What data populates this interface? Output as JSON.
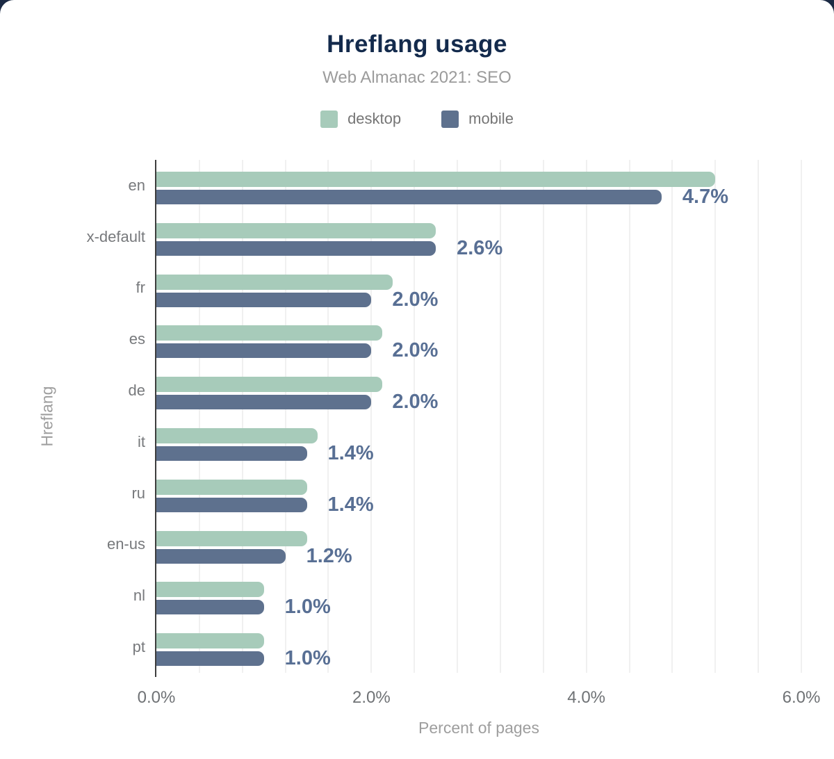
{
  "header": {
    "title": "Hreflang usage",
    "subtitle": "Web Almanac 2021: SEO"
  },
  "legend": [
    {
      "label": "desktop",
      "color": "#a7cbba"
    },
    {
      "label": "mobile",
      "color": "#5e718e"
    }
  ],
  "colors": {
    "title": "#132a4c",
    "desktop_bar": "#a7cbba",
    "mobile_bar": "#5e718e",
    "data_label": "#586f94",
    "axis_line": "#3d3d3d",
    "gridline": "#f0f0f0",
    "card_background": "#ffffff",
    "page_background": "#1b2a44"
  },
  "chart_data": {
    "type": "bar",
    "orientation": "horizontal",
    "title": "Hreflang usage",
    "subtitle": "Web Almanac 2021: SEO",
    "xlabel": "Percent of pages",
    "ylabel": "Hreflang",
    "xlim": [
      0,
      6
    ],
    "grid": true,
    "minor_gridline_step": 0.4,
    "legend_position": "top",
    "categories": [
      "en",
      "x-default",
      "fr",
      "es",
      "de",
      "it",
      "ru",
      "en-us",
      "nl",
      "pt"
    ],
    "series": [
      {
        "name": "desktop",
        "color": "#a7cbba",
        "values": [
          5.2,
          2.6,
          2.2,
          2.1,
          2.1,
          1.5,
          1.4,
          1.4,
          1.0,
          1.0
        ]
      },
      {
        "name": "mobile",
        "color": "#5e718e",
        "values": [
          4.7,
          2.6,
          2.0,
          2.0,
          2.0,
          1.4,
          1.4,
          1.2,
          1.0,
          1.0
        ]
      }
    ],
    "data_labels": {
      "attached_to_series": "mobile",
      "values": [
        "4.7%",
        "2.6%",
        "2.0%",
        "2.0%",
        "2.0%",
        "1.4%",
        "1.4%",
        "1.2%",
        "1.0%",
        "1.0%"
      ]
    },
    "x_ticks": [
      {
        "value": 0,
        "label": "0.0%"
      },
      {
        "value": 2,
        "label": "2.0%"
      },
      {
        "value": 4,
        "label": "4.0%"
      },
      {
        "value": 6,
        "label": "6.0%"
      }
    ]
  }
}
